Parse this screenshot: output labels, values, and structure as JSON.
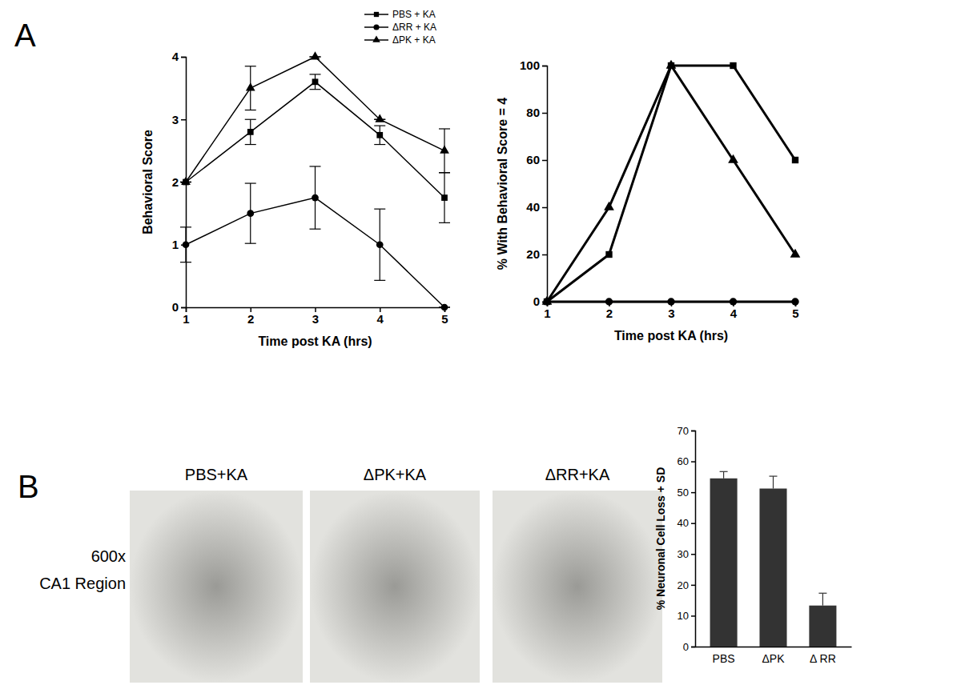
{
  "panel_labels": [
    "A",
    "B"
  ],
  "micrographs": {
    "titles": [
      "PBS+KA",
      "ΔPK+KA",
      "ΔRR+KA"
    ],
    "row_label": [
      "600x",
      "CA1 Region"
    ]
  },
  "chart_data": [
    {
      "type": "line",
      "x_label": "Time post KA (hrs)",
      "y_label": "Behavioral Score",
      "x": [
        1,
        2,
        3,
        4,
        5
      ],
      "xlim": [
        1,
        5
      ],
      "xticks": [
        1,
        2,
        3,
        4,
        5
      ],
      "ylim": [
        0,
        4
      ],
      "yticks": [
        0,
        1,
        2,
        3,
        4
      ],
      "legend": "top-right",
      "series": [
        {
          "name": "PBS + KA",
          "color": "#000000",
          "marker": "square",
          "values": [
            2,
            2.8,
            3.6,
            2.75,
            1.75
          ],
          "errors": [
            0,
            0.2,
            0.12,
            0.15,
            0.4
          ]
        },
        {
          "name": "ΔRR + KA",
          "color": "#000000",
          "marker": "circle",
          "values": [
            1,
            1.5,
            1.75,
            1.0,
            0
          ],
          "errors": [
            0.28,
            0.48,
            0.5,
            0.57,
            0
          ]
        },
        {
          "name": "ΔPK + KA",
          "color": "#000000",
          "marker": "triangle",
          "values": [
            2,
            3.5,
            4.0,
            3.0,
            2.5
          ],
          "errors": [
            0,
            0.35,
            0,
            0,
            0.35
          ]
        }
      ]
    },
    {
      "type": "line",
      "x_label": "Time post KA (hrs)",
      "y_label": "%  With Behavioral Score = 4",
      "x": [
        1,
        2,
        3,
        4,
        5
      ],
      "xlim": [
        1,
        5
      ],
      "xticks": [
        1,
        2,
        3,
        4,
        5
      ],
      "ylim": [
        0,
        100
      ],
      "yticks": [
        0,
        20,
        40,
        60,
        80,
        100
      ],
      "series": [
        {
          "color": "#000000",
          "marker": "square",
          "values": [
            0,
            20,
            100,
            100,
            60
          ]
        },
        {
          "color": "#000000",
          "marker": "circle",
          "values": [
            0,
            0,
            0,
            0,
            0
          ]
        },
        {
          "color": "#000000",
          "marker": "triangle",
          "values": [
            0,
            40,
            100,
            60,
            20
          ]
        }
      ]
    },
    {
      "type": "bar",
      "y_label": "% Neuronal Cell Loss + SD",
      "categories": [
        "PBS",
        "ΔPK",
        "Δ RR"
      ],
      "values": [
        54.5,
        51.2,
        13.3
      ],
      "errors": [
        2.2,
        4.0,
        4.0
      ],
      "color": "#333333",
      "ylim": [
        0,
        70
      ],
      "yticks": [
        0,
        10,
        20,
        30,
        40,
        50,
        60,
        70
      ]
    }
  ]
}
